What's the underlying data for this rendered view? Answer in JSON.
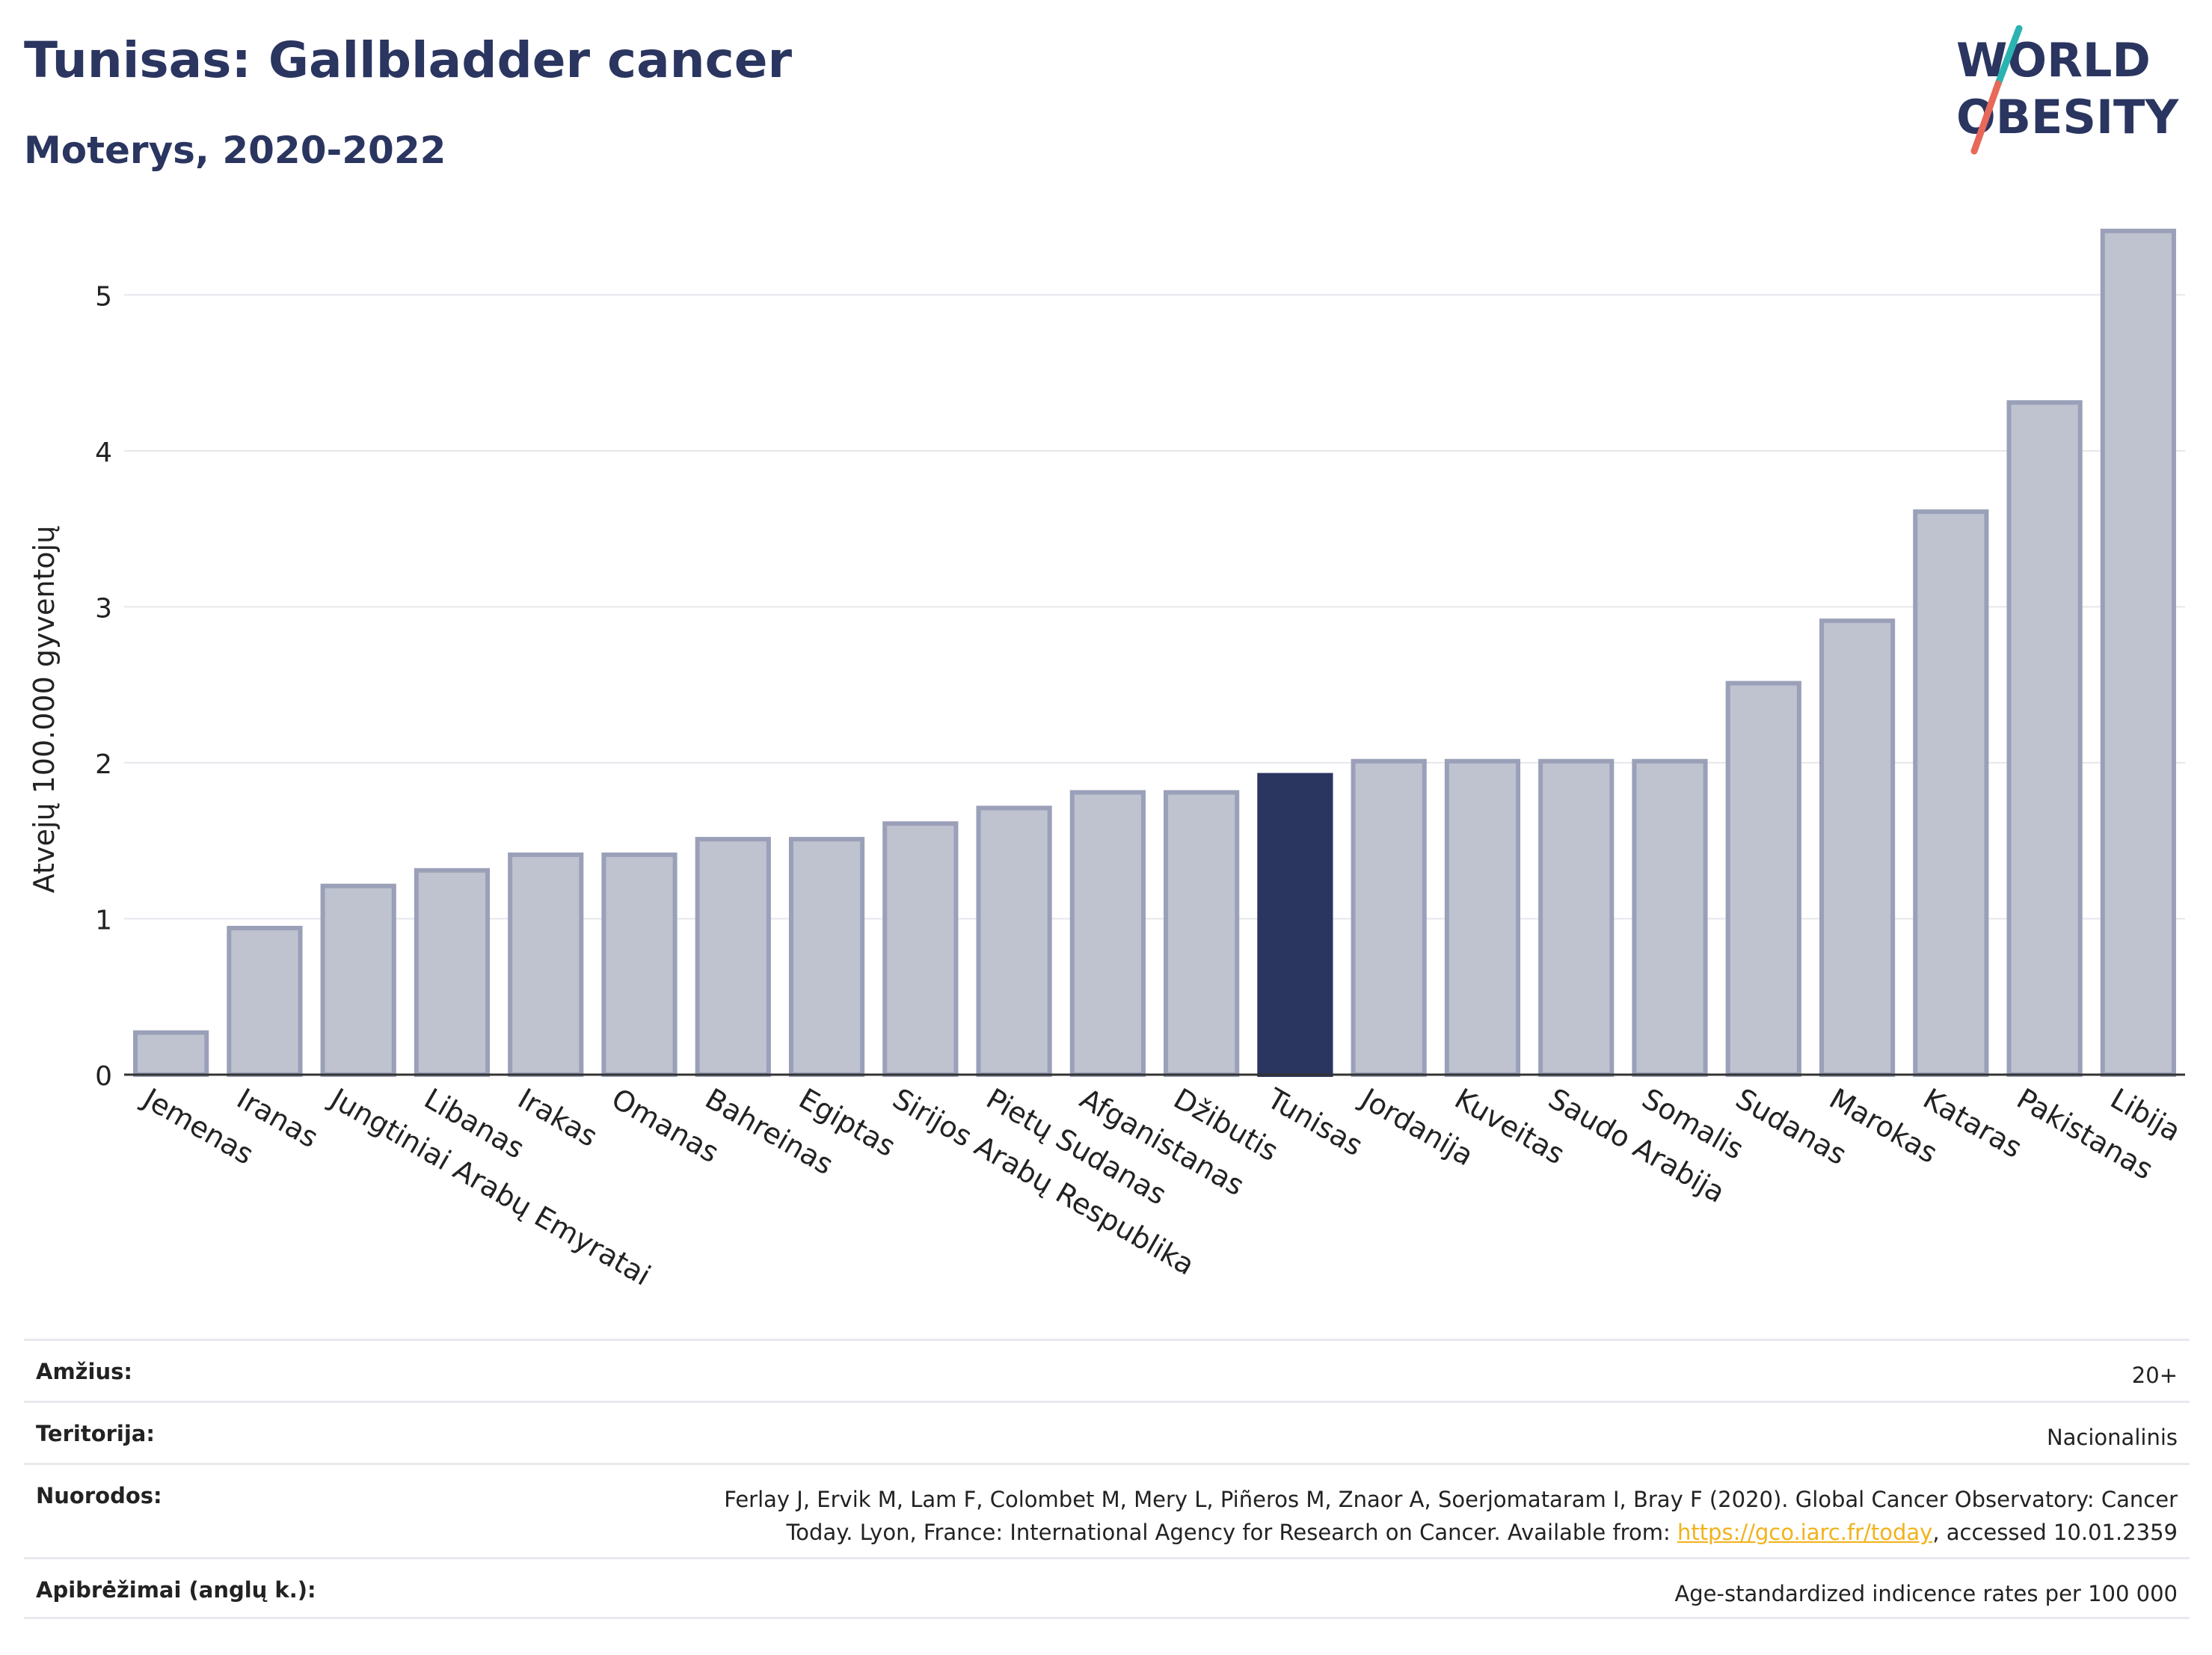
{
  "title": "Tunisas: Gallbladder cancer",
  "subtitle": "Moterys, 2020-2022",
  "logo": {
    "line1": "WORLD",
    "line2": "OBESITY"
  },
  "colors": {
    "highlight": "#2a3560",
    "bar": "#bfc2cf",
    "bar_stroke": "#9aa0b8",
    "grid": "#e6e7ec"
  },
  "chart_data": {
    "type": "bar",
    "ylabel": "Atvejų 100.000 gyventojų",
    "ylim": [
      0,
      5.5
    ],
    "yticks": [
      0,
      1,
      2,
      3,
      4,
      5
    ],
    "grid": true,
    "highlight": "Tunisas",
    "categories": [
      "Jemenas",
      "Iranas",
      "Jungtiniai Arabų Emyratai",
      "Libanas",
      "Irakas",
      "Omanas",
      "Bahreinas",
      "Egiptas",
      "Sirijos Arabų Respublika",
      "Pietų Sudanas",
      "Afganistanas",
      "Džibutis",
      "Tunisas",
      "Jordanija",
      "Kuveitas",
      "Saudo Arabija",
      "Somalis",
      "Sudanas",
      "Marokas",
      "Kataras",
      "Pakistanas",
      "Libija"
    ],
    "values": [
      0.27,
      0.94,
      1.21,
      1.31,
      1.41,
      1.41,
      1.51,
      1.51,
      1.61,
      1.71,
      1.81,
      1.81,
      1.92,
      2.01,
      2.01,
      2.01,
      2.01,
      2.51,
      2.91,
      3.61,
      4.31,
      5.41
    ]
  },
  "info": {
    "age_label": "Amžius:",
    "age_value": "20+",
    "territory_label": "Teritorija:",
    "territory_value": "Nacionalinis",
    "refs_label": "Nuorodos:",
    "refs_line1": "Ferlay J, Ervik M, Lam F, Colombet M, Mery L, Piñeros M, Znaor A, Soerjomataram I, Bray F (2020). Global Cancer Observatory: Cancer",
    "refs_line2_pre": "Today. Lyon, France: International Agency for Research on Cancer. Available from: ",
    "refs_link": "https://gco.iarc.fr/today",
    "refs_line2_post": ", accessed 10.01.2359",
    "defs_label": "Apibrėžimai (anglų k.):",
    "defs_value": "Age-standardized indicence rates per 100 000"
  }
}
